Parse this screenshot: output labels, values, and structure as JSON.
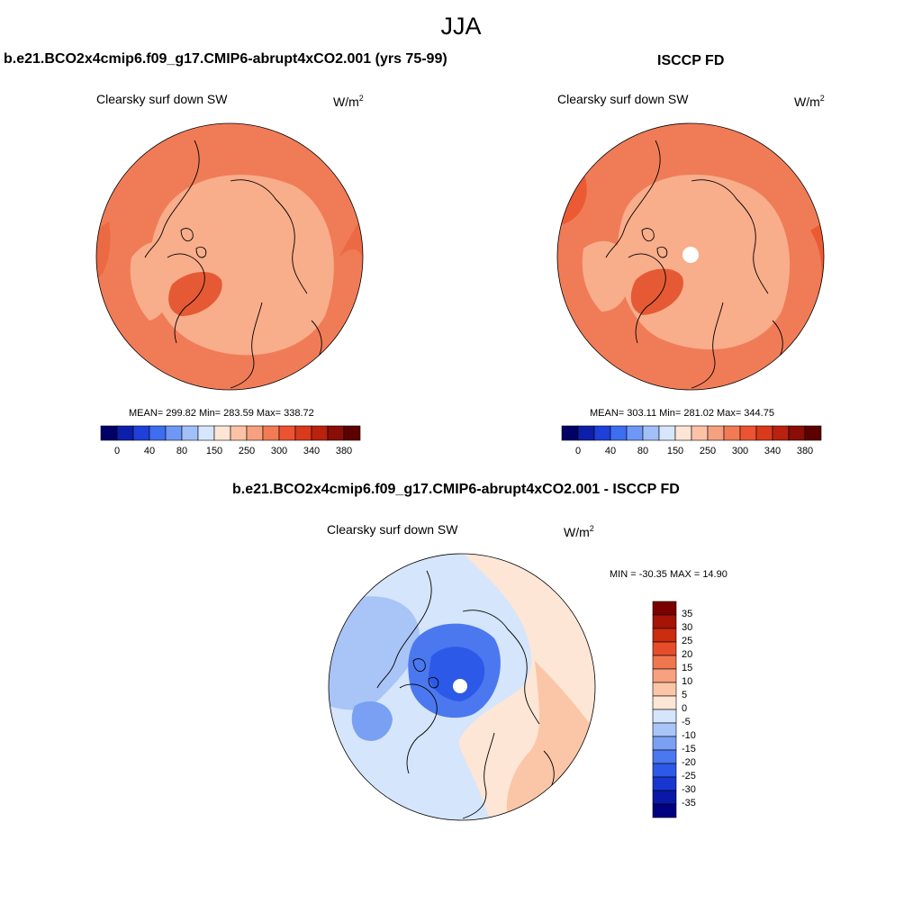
{
  "figure": {
    "title": "JJA",
    "colors": {
      "abs_scale": [
        "#000066",
        "#0d1fa8",
        "#1f3fd9",
        "#3d6ef0",
        "#6f97f5",
        "#a3bff7",
        "#d6e6fb",
        "#fde5d6",
        "#fbc2a6",
        "#f7a07f",
        "#f27a54",
        "#ec5431",
        "#d93a1b",
        "#b8220f",
        "#8a0d07",
        "#5c0000"
      ],
      "diff_scale": [
        "#000080",
        "#0a18a8",
        "#1737d0",
        "#2d59e8",
        "#4b78ef",
        "#7aa0f3",
        "#a9c4f7",
        "#d5e5fb",
        "#fde6d5",
        "#fbc6a8",
        "#f7a17e",
        "#f07650",
        "#e64d2a",
        "#cc2c10",
        "#a51405",
        "#7a0000"
      ],
      "land_outline": "#000000",
      "ocean_abs_model": "#f07c57",
      "arctic_abs_model": "#f8ad8b",
      "ocean_abs_obs": "#f07c57",
      "arctic_abs_obs": "#f8ad8b",
      "greenland": "#e55a34"
    }
  },
  "panels": [
    {
      "title": "b.e21.BCO2x4cmip6.f09_g17.CMIP6-abrupt4xCO2.001 (yrs 75-99)",
      "variable": "Clearsky surf down SW",
      "units_base": "W/m",
      "units_exp": "2",
      "stats": "MEAN= 299.82  Min= 283.59  Max= 338.72",
      "colorbar_ticks": [
        "0",
        "40",
        "80",
        "150",
        "250",
        "300",
        "340",
        "380"
      ]
    },
    {
      "title": "ISCCP FD",
      "variable": "Clearsky surf down SW",
      "units_base": "W/m",
      "units_exp": "2",
      "stats": "MEAN= 303.11  Min= 281.02  Max= 344.75",
      "colorbar_ticks": [
        "0",
        "40",
        "80",
        "150",
        "250",
        "300",
        "340",
        "380"
      ]
    },
    {
      "title": "b.e21.BCO2x4cmip6.f09_g17.CMIP6-abrupt4xCO2.001 - ISCCP FD",
      "variable": "Clearsky surf down SW",
      "units_base": "W/m",
      "units_exp": "2",
      "stats": "MIN = -30.35 MAX =  14.90",
      "colorbar_ticks": [
        "35",
        "30",
        "25",
        "20",
        "15",
        "10",
        "5",
        "0",
        "-5",
        "-10",
        "-15",
        "-20",
        "-25",
        "-30",
        "-35"
      ]
    }
  ],
  "chart_data": [
    {
      "type": "heatmap",
      "title": "b.e21.BCO2x4cmip6.f09_g17.CMIP6-abrupt4xCO2.001 (yrs 75-99)",
      "projection": "north-polar-stereographic",
      "variable": "Clearsky surf down SW",
      "units": "W/m2",
      "levels": [
        0,
        40,
        80,
        150,
        250,
        300,
        340,
        380
      ],
      "mean": 299.82,
      "min": 283.59,
      "max": 338.72,
      "legend": "bottom"
    },
    {
      "type": "heatmap",
      "title": "ISCCP FD",
      "projection": "north-polar-stereographic",
      "variable": "Clearsky surf down SW",
      "units": "W/m2",
      "levels": [
        0,
        40,
        80,
        150,
        250,
        300,
        340,
        380
      ],
      "mean": 303.11,
      "min": 281.02,
      "max": 344.75,
      "legend": "bottom"
    },
    {
      "type": "heatmap",
      "title": "b.e21.BCO2x4cmip6.f09_g17.CMIP6-abrupt4xCO2.001 - ISCCP FD",
      "projection": "north-polar-stereographic",
      "variable": "Clearsky surf down SW",
      "units": "W/m2",
      "levels": [
        -35,
        -30,
        -25,
        -20,
        -15,
        -10,
        -5,
        0,
        5,
        10,
        15,
        20,
        25,
        30,
        35
      ],
      "min": -30.35,
      "max": 14.9,
      "legend": "right"
    }
  ]
}
